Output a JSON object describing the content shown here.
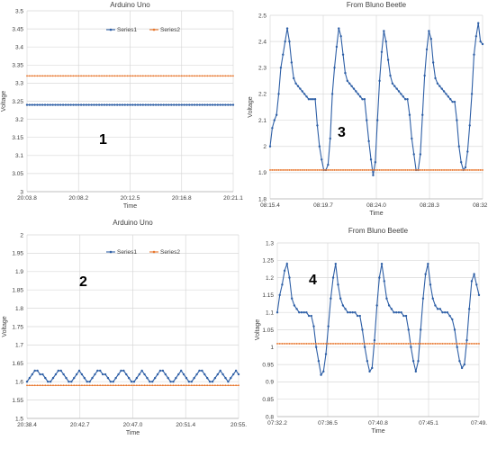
{
  "colors": {
    "series1": "#2e5fa6",
    "series2": "#e8772e",
    "grid": "#d9d9d9",
    "axis": "#bfbfbf",
    "text": "#404040"
  },
  "chart_data": [
    {
      "type": "line",
      "title": "Arduino Uno",
      "xlabel": "Time",
      "ylabel": "Voltage",
      "annotation": "1",
      "legend": "top-center",
      "grid": true,
      "xlim": [
        "20:03.8",
        "20:21.1"
      ],
      "x_ticks": [
        "20:03.8",
        "20:08.2",
        "20:12.5",
        "20:16.8",
        "20:21.1"
      ],
      "ylim": [
        3,
        3.5
      ],
      "y_ticks": [
        "3",
        "3.05",
        "3.1",
        "3.15",
        "3.2",
        "3.25",
        "3.3",
        "3.35",
        "3.4",
        "3.45",
        "3.5"
      ],
      "series": [
        {
          "name": "Series1",
          "values": [
            3.24,
            3.24,
            3.24,
            3.24,
            3.24,
            3.24,
            3.24,
            3.24,
            3.24,
            3.24,
            3.24,
            3.24,
            3.24,
            3.24,
            3.24,
            3.24,
            3.24,
            3.24,
            3.24,
            3.24,
            3.24,
            3.24,
            3.24,
            3.24,
            3.24,
            3.24,
            3.24,
            3.24,
            3.24,
            3.24,
            3.24,
            3.24,
            3.24,
            3.24,
            3.24,
            3.24,
            3.24,
            3.24,
            3.24,
            3.24,
            3.24,
            3.24,
            3.24,
            3.24,
            3.24,
            3.24,
            3.24,
            3.24,
            3.24,
            3.24,
            3.24,
            3.24,
            3.24,
            3.24,
            3.24,
            3.24,
            3.24,
            3.24,
            3.24,
            3.24,
            3.24,
            3.24,
            3.24,
            3.24,
            3.24,
            3.24,
            3.24,
            3.24,
            3.24,
            3.24,
            3.24,
            3.24,
            3.24,
            3.24,
            3.24,
            3.24,
            3.24,
            3.24,
            3.24,
            3.24,
            3.24
          ]
        },
        {
          "name": "Series2",
          "values": [
            3.32,
            3.32,
            3.32,
            3.32,
            3.32,
            3.32,
            3.32,
            3.32,
            3.32,
            3.32,
            3.32,
            3.32,
            3.32,
            3.32,
            3.32,
            3.32,
            3.32,
            3.32,
            3.32,
            3.32,
            3.32,
            3.32,
            3.32,
            3.32,
            3.32,
            3.32,
            3.32,
            3.32,
            3.32,
            3.32,
            3.32,
            3.32,
            3.32,
            3.32,
            3.32,
            3.32,
            3.32,
            3.32,
            3.32,
            3.32,
            3.32,
            3.32,
            3.32,
            3.32,
            3.32,
            3.32,
            3.32,
            3.32,
            3.32,
            3.32,
            3.32,
            3.32,
            3.32,
            3.32,
            3.32,
            3.32,
            3.32,
            3.32,
            3.32,
            3.32,
            3.32,
            3.32,
            3.32,
            3.32,
            3.32,
            3.32,
            3.32,
            3.32,
            3.32,
            3.32,
            3.32,
            3.32,
            3.32,
            3.32,
            3.32,
            3.32,
            3.32,
            3.32,
            3.32,
            3.32,
            3.32
          ]
        }
      ]
    },
    {
      "type": "line",
      "title": "From Bluno Beetle",
      "xlabel": "Time",
      "ylabel": "Voltage",
      "annotation": "3",
      "legend": "none",
      "grid": true,
      "xlim": [
        "08:15.4",
        "08:32.6"
      ],
      "x_ticks": [
        "08:15.4",
        "08:19.7",
        "08:24.0",
        "08:28.3",
        "08:32.6"
      ],
      "ylim": [
        1.8,
        2.5
      ],
      "y_ticks": [
        "1.8",
        "1.9",
        "2",
        "2.1",
        "2.2",
        "2.3",
        "2.4",
        "2.5"
      ],
      "series": [
        {
          "name": "Series1",
          "values": [
            2.0,
            2.07,
            2.1,
            2.12,
            2.2,
            2.3,
            2.35,
            2.4,
            2.45,
            2.4,
            2.32,
            2.26,
            2.24,
            2.23,
            2.22,
            2.21,
            2.2,
            2.19,
            2.18,
            2.18,
            2.18,
            2.18,
            2.08,
            2.0,
            1.95,
            1.91,
            1.91,
            1.93,
            2.03,
            2.2,
            2.3,
            2.38,
            2.45,
            2.42,
            2.35,
            2.28,
            2.25,
            2.24,
            2.23,
            2.22,
            2.21,
            2.2,
            2.19,
            2.18,
            2.18,
            2.1,
            2.02,
            1.95,
            1.89,
            1.94,
            2.1,
            2.25,
            2.36,
            2.44,
            2.4,
            2.33,
            2.27,
            2.24,
            2.23,
            2.22,
            2.21,
            2.2,
            2.19,
            2.18,
            2.18,
            2.12,
            2.03,
            1.97,
            1.91,
            1.91,
            1.97,
            2.12,
            2.27,
            2.37,
            2.44,
            2.41,
            2.32,
            2.26,
            2.24,
            2.23,
            2.22,
            2.21,
            2.2,
            2.19,
            2.18,
            2.17,
            2.17,
            2.1,
            2.0,
            1.94,
            1.91,
            1.92,
            1.98,
            2.08,
            2.2,
            2.35,
            2.42,
            2.47,
            2.4,
            2.39
          ]
        },
        {
          "name": "Series2",
          "values": [
            1.91,
            1.91,
            1.91,
            1.91,
            1.91,
            1.91,
            1.91,
            1.91,
            1.91,
            1.91,
            1.91,
            1.91,
            1.91,
            1.91,
            1.91,
            1.91,
            1.91,
            1.91,
            1.91,
            1.91,
            1.91,
            1.91,
            1.91,
            1.91,
            1.91,
            1.91,
            1.91,
            1.91,
            1.91,
            1.91,
            1.91,
            1.91,
            1.91,
            1.91,
            1.91,
            1.91,
            1.91,
            1.91,
            1.91,
            1.91,
            1.91,
            1.91,
            1.91,
            1.91,
            1.91,
            1.91,
            1.91,
            1.91,
            1.91,
            1.91,
            1.91,
            1.91,
            1.91,
            1.91,
            1.91,
            1.91,
            1.91,
            1.91,
            1.91,
            1.91,
            1.91,
            1.91,
            1.91,
            1.91,
            1.91,
            1.91,
            1.91,
            1.91,
            1.91,
            1.91,
            1.91,
            1.91,
            1.91,
            1.91,
            1.91,
            1.91,
            1.91,
            1.91,
            1.91,
            1.91,
            1.91,
            1.91,
            1.91,
            1.91,
            1.91,
            1.91,
            1.91,
            1.91,
            1.91,
            1.91,
            1.91,
            1.91,
            1.91,
            1.91,
            1.91,
            1.91,
            1.91,
            1.91,
            1.91,
            1.91
          ]
        }
      ]
    },
    {
      "type": "line",
      "title": "Arduino Uno",
      "xlabel": "Time",
      "ylabel": "Voltage",
      "annotation": "2",
      "legend": "top-center",
      "grid": true,
      "xlim": [
        "20:38.4",
        "20:55."
      ],
      "x_ticks": [
        "20:38.4",
        "20:42.7",
        "20:47.0",
        "20:51.4",
        "20:55."
      ],
      "ylim": [
        1.5,
        2
      ],
      "y_ticks": [
        "1.5",
        "1.55",
        "1.6",
        "1.65",
        "1.7",
        "1.75",
        "1.8",
        "1.85",
        "1.9",
        "1.95",
        "2"
      ],
      "series": [
        {
          "name": "Series1",
          "values": [
            1.6,
            1.61,
            1.62,
            1.63,
            1.63,
            1.62,
            1.62,
            1.61,
            1.6,
            1.6,
            1.61,
            1.62,
            1.63,
            1.63,
            1.62,
            1.61,
            1.6,
            1.6,
            1.61,
            1.62,
            1.63,
            1.62,
            1.61,
            1.6,
            1.6,
            1.61,
            1.62,
            1.63,
            1.63,
            1.62,
            1.62,
            1.61,
            1.6,
            1.6,
            1.61,
            1.62,
            1.63,
            1.63,
            1.62,
            1.61,
            1.6,
            1.6,
            1.61,
            1.62,
            1.63,
            1.62,
            1.61,
            1.6,
            1.6,
            1.61,
            1.62,
            1.63,
            1.63,
            1.62,
            1.61,
            1.6,
            1.6,
            1.61,
            1.62,
            1.63,
            1.62,
            1.61,
            1.6,
            1.6,
            1.61,
            1.62,
            1.63,
            1.63,
            1.62,
            1.61,
            1.6,
            1.6,
            1.61,
            1.62,
            1.63,
            1.62,
            1.61,
            1.6,
            1.61,
            1.62,
            1.63,
            1.62
          ]
        },
        {
          "name": "Series2",
          "values": [
            1.59,
            1.59,
            1.59,
            1.59,
            1.59,
            1.59,
            1.59,
            1.59,
            1.59,
            1.59,
            1.59,
            1.59,
            1.59,
            1.59,
            1.59,
            1.59,
            1.59,
            1.59,
            1.59,
            1.59,
            1.59,
            1.59,
            1.59,
            1.59,
            1.59,
            1.59,
            1.59,
            1.59,
            1.59,
            1.59,
            1.59,
            1.59,
            1.59,
            1.59,
            1.59,
            1.59,
            1.59,
            1.59,
            1.59,
            1.59,
            1.59,
            1.59,
            1.59,
            1.59,
            1.59,
            1.59,
            1.59,
            1.59,
            1.59,
            1.59,
            1.59,
            1.59,
            1.59,
            1.59,
            1.59,
            1.59,
            1.59,
            1.59,
            1.59,
            1.59,
            1.59,
            1.59,
            1.59,
            1.59,
            1.59,
            1.59,
            1.59,
            1.59,
            1.59,
            1.59,
            1.59,
            1.59,
            1.59,
            1.59,
            1.59,
            1.59,
            1.59,
            1.59,
            1.59,
            1.59,
            1.59,
            1.59
          ]
        }
      ]
    },
    {
      "type": "line",
      "title": "From Bluno Beetle",
      "xlabel": "Time",
      "ylabel": "Voltage",
      "annotation": "4",
      "legend": "none",
      "grid": true,
      "xlim": [
        "07:32.2",
        "07:49."
      ],
      "x_ticks": [
        "07:32.2",
        "07:36.5",
        "07:40.8",
        "07:45.1",
        "07:49."
      ],
      "ylim": [
        0.8,
        1.3
      ],
      "y_ticks": [
        "0.8",
        "0.85",
        "0.9",
        "0.95",
        "1",
        "1.05",
        "1.1",
        "1.15",
        "1.2",
        "1.25",
        "1.3"
      ],
      "series": [
        {
          "name": "Series1",
          "values": [
            1.1,
            1.15,
            1.18,
            1.22,
            1.24,
            1.2,
            1.14,
            1.12,
            1.11,
            1.1,
            1.1,
            1.1,
            1.1,
            1.09,
            1.09,
            1.06,
            1.0,
            0.96,
            0.92,
            0.93,
            0.98,
            1.06,
            1.14,
            1.2,
            1.24,
            1.18,
            1.14,
            1.12,
            1.11,
            1.1,
            1.1,
            1.1,
            1.1,
            1.09,
            1.09,
            1.05,
            1.0,
            0.96,
            0.93,
            0.94,
            1.02,
            1.12,
            1.2,
            1.24,
            1.19,
            1.14,
            1.12,
            1.11,
            1.1,
            1.1,
            1.1,
            1.1,
            1.09,
            1.09,
            1.05,
            1.0,
            0.96,
            0.93,
            0.96,
            1.05,
            1.14,
            1.21,
            1.24,
            1.18,
            1.14,
            1.12,
            1.11,
            1.11,
            1.1,
            1.1,
            1.1,
            1.09,
            1.08,
            1.05,
            1.0,
            0.96,
            0.94,
            0.95,
            1.02,
            1.11,
            1.19,
            1.21,
            1.18,
            1.15
          ]
        },
        {
          "name": "Series2",
          "values": [
            1.01,
            1.01,
            1.01,
            1.01,
            1.01,
            1.01,
            1.01,
            1.01,
            1.01,
            1.01,
            1.01,
            1.01,
            1.01,
            1.01,
            1.01,
            1.01,
            1.01,
            1.01,
            1.01,
            1.01,
            1.01,
            1.01,
            1.01,
            1.01,
            1.01,
            1.01,
            1.01,
            1.01,
            1.01,
            1.01,
            1.01,
            1.01,
            1.01,
            1.01,
            1.01,
            1.01,
            1.01,
            1.01,
            1.01,
            1.01,
            1.01,
            1.01,
            1.01,
            1.01,
            1.01,
            1.01,
            1.01,
            1.01,
            1.01,
            1.01,
            1.01,
            1.01,
            1.01,
            1.01,
            1.01,
            1.01,
            1.01,
            1.01,
            1.01,
            1.01,
            1.01,
            1.01,
            1.01,
            1.01,
            1.01,
            1.01,
            1.01,
            1.01,
            1.01,
            1.01,
            1.01,
            1.01,
            1.01,
            1.01,
            1.01,
            1.01,
            1.01,
            1.01,
            1.01,
            1.01,
            1.01,
            1.01,
            1.01,
            1.01
          ]
        }
      ]
    }
  ]
}
